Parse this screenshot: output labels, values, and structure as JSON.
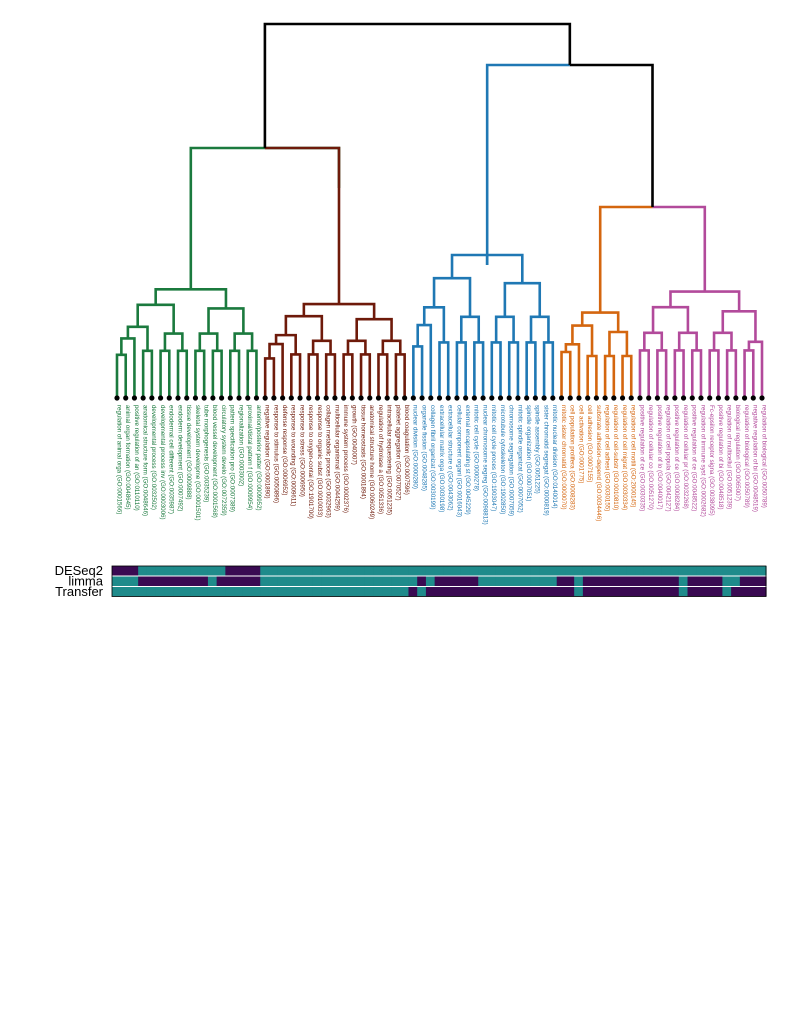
{
  "chart_data": {
    "type": "dendrogram-heatmap",
    "cluster_colors": [
      "#1b7a3e",
      "#6e1a0a",
      "#1f78b4",
      "#d4660f",
      "#b24a9b"
    ],
    "root_color": "#000000",
    "leaves": [
      {
        "label": "regulation of animal orga (GO:0001566)",
        "cluster": 0,
        "row_values": [
          0,
          1,
          1
        ]
      },
      {
        "label": "animal organ formation (GO:0048645)",
        "cluster": 0,
        "row_values": [
          0,
          1,
          1
        ]
      },
      {
        "label": "positive regulation of an (GO:0110110)",
        "cluster": 0,
        "row_values": [
          0,
          1,
          1
        ]
      },
      {
        "label": "anatomical structure form (GO:0048646)",
        "cluster": 0,
        "row_values": [
          1,
          0,
          1
        ]
      },
      {
        "label": "developmental process (GO:0032502)",
        "cluster": 0,
        "row_values": [
          1,
          0,
          1
        ]
      },
      {
        "label": "developmental process inv (GO:0003006)",
        "cluster": 0,
        "row_values": [
          1,
          0,
          1
        ]
      },
      {
        "label": "endodermal cell different (GO:0035987)",
        "cluster": 0,
        "row_values": [
          1,
          0,
          1
        ]
      },
      {
        "label": "endoderm development (GO:0007492)",
        "cluster": 0,
        "row_values": [
          1,
          0,
          1
        ]
      },
      {
        "label": "tissue development (GO:0009888)",
        "cluster": 0,
        "row_values": [
          1,
          0,
          1
        ]
      },
      {
        "label": "skeletal system developme (GO:0001501)",
        "cluster": 0,
        "row_values": [
          1,
          0,
          1
        ]
      },
      {
        "label": "tube morphogenesis (GO:0035239)",
        "cluster": 0,
        "row_values": [
          1,
          0,
          1
        ]
      },
      {
        "label": "blood vessel development (GO:0001568)",
        "cluster": 0,
        "row_values": [
          1,
          1,
          1
        ]
      },
      {
        "label": "circulatory system develo (GO:0072359)",
        "cluster": 0,
        "row_values": [
          1,
          0,
          1
        ]
      },
      {
        "label": "pattern specification pro (GO:0007389)",
        "cluster": 0,
        "row_values": [
          0,
          0,
          1
        ]
      },
      {
        "label": "regionalization (GO:0003002)",
        "cluster": 0,
        "row_values": [
          0,
          0,
          1
        ]
      },
      {
        "label": "proximal/distal pattern f (GO:0009954)",
        "cluster": 0,
        "row_values": [
          0,
          0,
          1
        ]
      },
      {
        "label": "anterior/posterior patter (GO:0009952)",
        "cluster": 0,
        "row_values": [
          0,
          0,
          1
        ]
      },
      {
        "label": "negative regulation (GO:0001890)",
        "cluster": 1,
        "row_values": [
          1,
          1,
          1
        ]
      },
      {
        "label": "response to stimulus (GO:0050896)",
        "cluster": 1,
        "row_values": [
          1,
          1,
          1
        ]
      },
      {
        "label": "defense response (GO:0006952)",
        "cluster": 1,
        "row_values": [
          1,
          1,
          1
        ]
      },
      {
        "label": "response to wounding (GO:0009611)",
        "cluster": 1,
        "row_values": [
          1,
          1,
          1
        ]
      },
      {
        "label": "response to stress (GO:0006950)",
        "cluster": 1,
        "row_values": [
          1,
          1,
          1
        ]
      },
      {
        "label": "response to oxygen-contai (GO:1901700)",
        "cluster": 1,
        "row_values": [
          1,
          1,
          1
        ]
      },
      {
        "label": "response to organic subst (GO:0010033)",
        "cluster": 1,
        "row_values": [
          1,
          1,
          1
        ]
      },
      {
        "label": "collagen metabolic proces (GO:0032963)",
        "cluster": 1,
        "row_values": [
          1,
          1,
          1
        ]
      },
      {
        "label": "multicellular organismal (GO:0044259)",
        "cluster": 1,
        "row_values": [
          1,
          1,
          1
        ]
      },
      {
        "label": "immune system process (GO:0002376)",
        "cluster": 1,
        "row_values": [
          1,
          1,
          1
        ]
      },
      {
        "label": "growth (GO:0040007)",
        "cluster": 1,
        "row_values": [
          1,
          1,
          1
        ]
      },
      {
        "label": "tissue homeostasis (GO:0001894)",
        "cluster": 1,
        "row_values": [
          1,
          1,
          1
        ]
      },
      {
        "label": "anatomical structure home (GO:0060249)",
        "cluster": 1,
        "row_values": [
          1,
          1,
          1
        ]
      },
      {
        "label": "regulation of hydrolase a (GO:0051336)",
        "cluster": 1,
        "row_values": [
          1,
          1,
          1
        ]
      },
      {
        "label": "intracellular sequestering (GO:0051235)",
        "cluster": 1,
        "row_values": [
          1,
          1,
          1
        ]
      },
      {
        "label": "platelet aggregation (GO:0070527)",
        "cluster": 1,
        "row_values": [
          1,
          1,
          1
        ]
      },
      {
        "label": "blood coagulation (GO:0007596)",
        "cluster": 1,
        "row_values": [
          1,
          1,
          1
        ]
      },
      {
        "label": "nuclear division (GO:0000280)",
        "cluster": 2,
        "row_values": [
          1,
          1,
          0
        ]
      },
      {
        "label": "organelle fission (GO:0048285)",
        "cluster": 2,
        "row_values": [
          1,
          0,
          1
        ]
      },
      {
        "label": "collagen fibril organizat (GO:0030199)",
        "cluster": 2,
        "row_values": [
          1,
          1,
          0
        ]
      },
      {
        "label": "extracellular matrix orga (GO:0030198)",
        "cluster": 2,
        "row_values": [
          1,
          0,
          0
        ]
      },
      {
        "label": "extracellular structure o (GO:0043062)",
        "cluster": 2,
        "row_values": [
          1,
          0,
          0
        ]
      },
      {
        "label": "cellular component organi (GO:0016043)",
        "cluster": 2,
        "row_values": [
          1,
          0,
          0
        ]
      },
      {
        "label": "external encapsulating st (GO:0045229)",
        "cluster": 2,
        "row_values": [
          1,
          0,
          0
        ]
      },
      {
        "label": "mitotic cell cycle (GO:0000278)",
        "cluster": 2,
        "row_values": [
          1,
          0,
          0
        ]
      },
      {
        "label": "nuclear chromosome segreg (GO:0098813)",
        "cluster": 2,
        "row_values": [
          1,
          1,
          0
        ]
      },
      {
        "label": "mitotic cell cycle proces (GO:1903047)",
        "cluster": 2,
        "row_values": [
          1,
          1,
          0
        ]
      },
      {
        "label": "microtubule cytoskeleton (GO:1902850)",
        "cluster": 2,
        "row_values": [
          1,
          1,
          0
        ]
      },
      {
        "label": "chromosome segregation (GO:0007059)",
        "cluster": 2,
        "row_values": [
          1,
          1,
          0
        ]
      },
      {
        "label": "mitotic spindle organizat (GO:0007052)",
        "cluster": 2,
        "row_values": [
          1,
          1,
          0
        ]
      },
      {
        "label": "spindle organization (GO:0007051)",
        "cluster": 2,
        "row_values": [
          1,
          1,
          0
        ]
      },
      {
        "label": "spindle assembly (GO:0051225)",
        "cluster": 2,
        "row_values": [
          1,
          1,
          0
        ]
      },
      {
        "label": "sister chromatid segregat (GO:0000819)",
        "cluster": 2,
        "row_values": [
          1,
          1,
          0
        ]
      },
      {
        "label": "mitotic nuclear division (GO:0140014)",
        "cluster": 2,
        "row_values": [
          1,
          1,
          0
        ]
      },
      {
        "label": "mitotic sister chromatid (GO:0000070)",
        "cluster": 3,
        "row_values": [
          1,
          0,
          0
        ]
      },
      {
        "label": "cell population prolifera (GO:0008283)",
        "cluster": 3,
        "row_values": [
          1,
          0,
          0
        ]
      },
      {
        "label": "cell activation (GO:0001775)",
        "cluster": 3,
        "row_values": [
          1,
          1,
          1
        ]
      },
      {
        "label": "cell adhesion (GO:0007155)",
        "cluster": 3,
        "row_values": [
          1,
          0,
          0
        ]
      },
      {
        "label": "substrate adhesion-depend (GO:0034446)",
        "cluster": 3,
        "row_values": [
          1,
          0,
          0
        ]
      },
      {
        "label": "regulation of cell adhesi (GO:0030155)",
        "cluster": 3,
        "row_values": [
          1,
          0,
          0
        ]
      },
      {
        "label": "regulation of cell-substr (GO:0010810)",
        "cluster": 3,
        "row_values": [
          1,
          0,
          0
        ]
      },
      {
        "label": "regulation of cell migrat (GO:0030334)",
        "cluster": 3,
        "row_values": [
          1,
          0,
          0
        ]
      },
      {
        "label": "regulation of cell motili (GO:2000145)",
        "cluster": 3,
        "row_values": [
          1,
          0,
          0
        ]
      },
      {
        "label": "positive regulation of ce (GO:0030335)",
        "cluster": 4,
        "row_values": [
          1,
          0,
          0
        ]
      },
      {
        "label": "regulation of cellular co (GO:0051270)",
        "cluster": 4,
        "row_values": [
          1,
          0,
          0
        ]
      },
      {
        "label": "positive regulation of lo (GO:0040017)",
        "cluster": 4,
        "row_values": [
          1,
          0,
          0
        ]
      },
      {
        "label": "regulation of cell popula (GO:0042127)",
        "cluster": 4,
        "row_values": [
          1,
          0,
          0
        ]
      },
      {
        "label": "positive regulation of ce (GO:0008284)",
        "cluster": 4,
        "row_values": [
          1,
          0,
          0
        ]
      },
      {
        "label": "regulation of cellular pr (GO:0032268)",
        "cluster": 4,
        "row_values": [
          1,
          1,
          1
        ]
      },
      {
        "label": "positive regulation of ce (GO:0048522)",
        "cluster": 4,
        "row_values": [
          1,
          0,
          0
        ]
      },
      {
        "label": "regulation of immune syst (GO:0002682)",
        "cluster": 4,
        "row_values": [
          1,
          0,
          0
        ]
      },
      {
        "label": "Fc-epsilon receptor signa (GO:0038095)",
        "cluster": 4,
        "row_values": [
          1,
          0,
          0
        ]
      },
      {
        "label": "positive regulation of bi (GO:0048518)",
        "cluster": 4,
        "row_values": [
          1,
          0,
          0
        ]
      },
      {
        "label": "regulation of multicellul (GO:0051239)",
        "cluster": 4,
        "row_values": [
          1,
          1,
          1
        ]
      },
      {
        "label": "biological regulation (GO:0065007)",
        "cluster": 4,
        "row_values": [
          1,
          1,
          0
        ]
      },
      {
        "label": "regulation of biological (GO:0050789)",
        "cluster": 4,
        "row_values": [
          1,
          0,
          0
        ]
      },
      {
        "label": "negative regulation of bi (GO:0048519)",
        "cluster": 4,
        "row_values": [
          1,
          0,
          0
        ]
      },
      {
        "label": "regulation of biological (GO:0050789)",
        "cluster": 4,
        "row_values": [
          1,
          0,
          0
        ]
      }
    ],
    "row_labels": [
      "DESeq2",
      "limma",
      "Transfer"
    ],
    "heatmap_colors": {
      "0": "#3a0a52",
      "1": "#1f8b8b"
    }
  }
}
